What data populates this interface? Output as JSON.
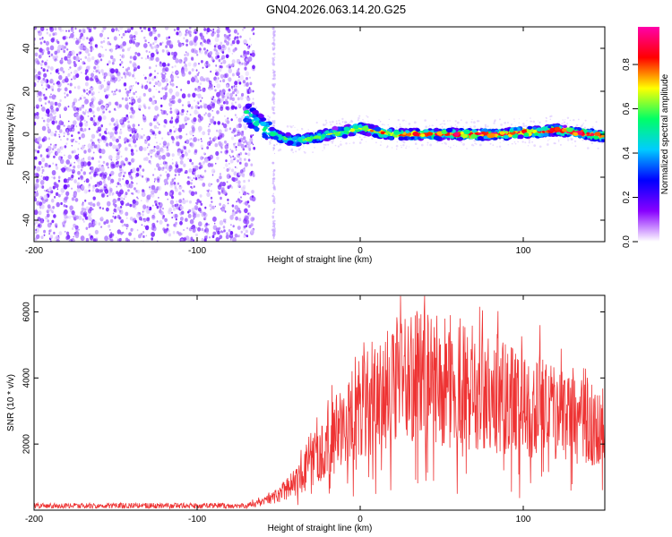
{
  "title": "GN04.2026.063.14.20.G25",
  "colors": {
    "snr_line": "#ee3333",
    "colormap": [
      "#ffffff",
      "#8800ff",
      "#0000ff",
      "#00ccff",
      "#00ff66",
      "#ffff00",
      "#ff0000",
      "#ff00aa"
    ]
  },
  "chart_data": [
    {
      "type": "heatmap",
      "name": "spectrogram",
      "xlabel": "Height of straight line (km)",
      "ylabel": "Frequency (Hz)",
      "xlim": [
        -200,
        150
      ],
      "ylim": [
        -50,
        50
      ],
      "xticks": [
        -200,
        -100,
        0,
        100
      ],
      "yticks": [
        -40,
        -20,
        0,
        20,
        40
      ],
      "xtick_labels": [
        "-200",
        "-100",
        "0",
        "100"
      ],
      "ytick_labels": [
        "-40",
        "-20",
        "0",
        "20",
        "40"
      ],
      "noise_region_xmax": -65,
      "stripe_x": -53,
      "ridge": {
        "x": [
          -70,
          -60,
          -50,
          -40,
          -30,
          -20,
          -10,
          0,
          10,
          20,
          30,
          40,
          50,
          60,
          70,
          80,
          90,
          100,
          110,
          120,
          130,
          140,
          150
        ],
        "y": [
          10,
          3,
          -1,
          -3,
          -2,
          0,
          1,
          3,
          1,
          0,
          0,
          0,
          0,
          0,
          0,
          0,
          0,
          1,
          1,
          2,
          1,
          0,
          -1
        ]
      },
      "colorbar": {
        "label": "Normalized spectral amplitude",
        "range": [
          0,
          0.97
        ],
        "ticks": [
          0.0,
          0.2,
          0.4,
          0.6,
          0.8
        ],
        "tick_labels": [
          "0.0",
          "0.2",
          "0.4",
          "0.6",
          "0.8"
        ]
      }
    },
    {
      "type": "line",
      "name": "snr",
      "xlabel": "Height of straight line (km)",
      "ylabel": "SNR (10 * v/v)",
      "xlim": [
        -200,
        150
      ],
      "ylim": [
        0,
        6500
      ],
      "xticks": [
        -200,
        -100,
        0,
        100
      ],
      "yticks": [
        2000,
        4000,
        6000
      ],
      "xtick_labels": [
        "-200",
        "-100",
        "0",
        "100"
      ],
      "ytick_labels": [
        "2000",
        "4000",
        "6000"
      ],
      "envelope": {
        "x": [
          -200,
          -70,
          -60,
          -50,
          -40,
          -30,
          -20,
          -10,
          0,
          10,
          20,
          30,
          40,
          50,
          60,
          70,
          80,
          90,
          100,
          110,
          120,
          130,
          140,
          150
        ],
        "y": [
          150,
          150,
          250,
          500,
          900,
          1500,
          2200,
          2800,
          3300,
          3700,
          4000,
          4200,
          4400,
          4300,
          4100,
          4000,
          3900,
          3700,
          3500,
          3300,
          3100,
          2900,
          2700,
          2500
        ]
      }
    }
  ]
}
